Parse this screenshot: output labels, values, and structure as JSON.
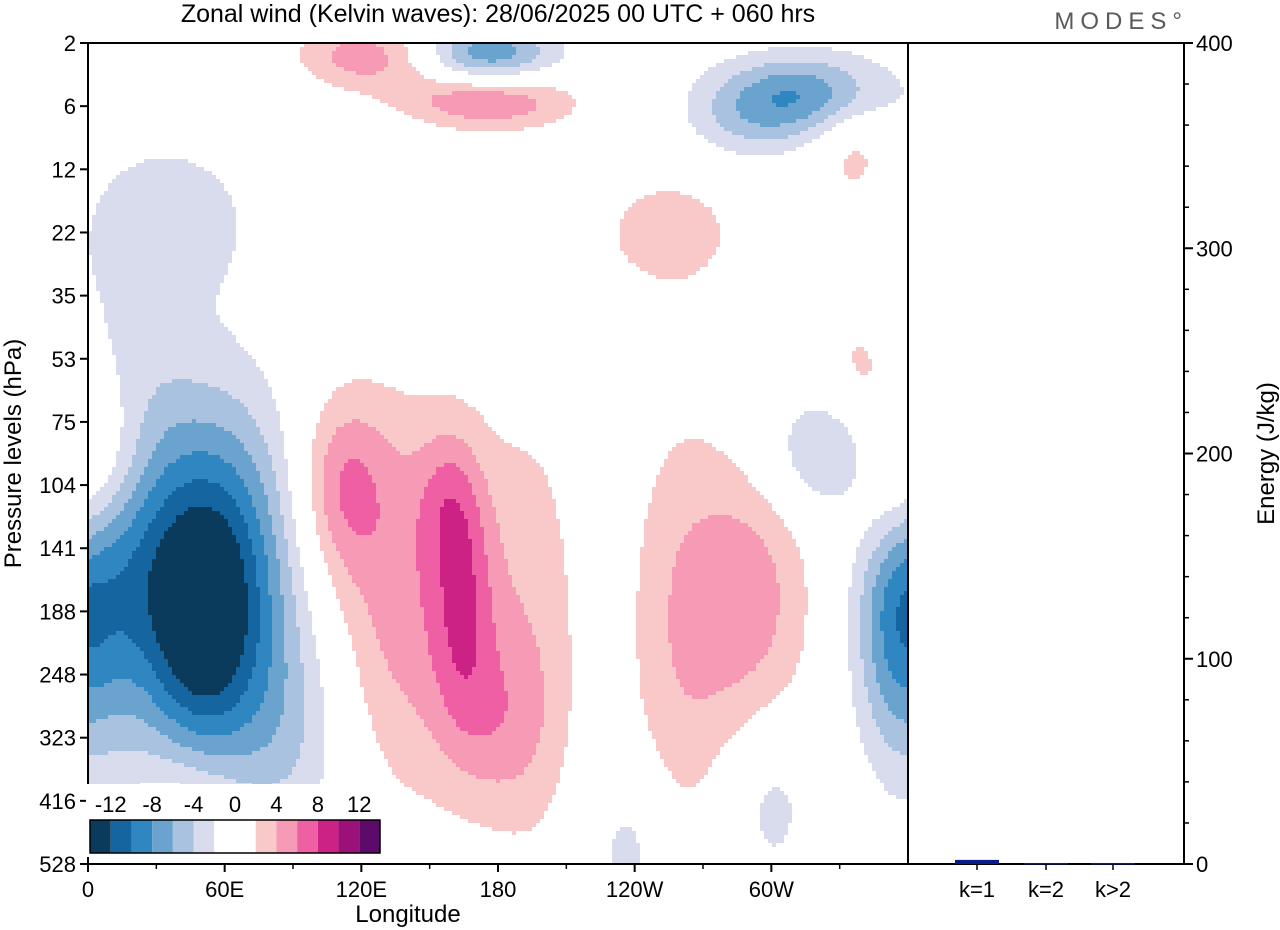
{
  "header": {
    "title": "Zonal wind (Kelvin waves):  28/06/2025  00 UTC  + 060 hrs",
    "brand": "MODES°"
  },
  "chart_data": [
    {
      "type": "heatmap",
      "title": "Zonal wind (Kelvin waves):  28/06/2025  00 UTC  + 060 hrs",
      "xlabel": "Longitude",
      "ylabel": "Pressure levels (hPa)",
      "x_ticks": [
        "0",
        "60E",
        "120E",
        "180",
        "120W",
        "60W"
      ],
      "y_ticks": [
        "2",
        "6",
        "12",
        "22",
        "35",
        "53",
        "75",
        "104",
        "141",
        "188",
        "248",
        "323",
        "416",
        "528"
      ],
      "colorbar": {
        "tick_labels": [
          "-12",
          "-8",
          "-4",
          "0",
          "4",
          "8",
          "12"
        ],
        "levels": [
          -14,
          -12,
          -10,
          -8,
          -6,
          -4,
          -2,
          0,
          2,
          4,
          6,
          8,
          10,
          12,
          14
        ],
        "colors": [
          "#0b3b5c",
          "#1565a0",
          "#2f86c0",
          "#6aa3cd",
          "#a9c2df",
          "#d8dcec",
          "#ffffff",
          "#ffffff",
          "#f9c8c8",
          "#f79ab5",
          "#ee5fa3",
          "#cc2185",
          "#9a1279",
          "#5c0b6b"
        ]
      },
      "features": [
        {
          "lon": 15,
          "lev": 8.0,
          "sx": 22,
          "sy": 2.2,
          "v": -9
        },
        {
          "lon": 5,
          "lev": 6.6,
          "sx": 16,
          "sy": 1.0,
          "v": 7
        },
        {
          "lon": 60,
          "lev": 8.6,
          "sx": 22,
          "sy": 2.0,
          "v": -11
        },
        {
          "lon": 48,
          "lev": 9.3,
          "sx": 14,
          "sy": 1.3,
          "v": -5
        },
        {
          "lon": 112,
          "lev": 7.0,
          "sx": 14,
          "sy": 1.0,
          "v": 5
        },
        {
          "lon": 140,
          "lev": 8.8,
          "sx": 24,
          "sy": 2.2,
          "v": 5
        },
        {
          "lon": 165,
          "lev": 8.9,
          "sx": 10,
          "sy": 1.4,
          "v": 5
        },
        {
          "lon": 195,
          "lev": 9.2,
          "sx": 16,
          "sy": 2.6,
          "v": 3
        },
        {
          "lon": 180,
          "lev": 10.8,
          "sx": 16,
          "sy": 1.0,
          "v": 3
        },
        {
          "lon": 290,
          "lev": 8.8,
          "sx": 20,
          "sy": 1.7,
          "v": 5
        },
        {
          "lon": 258,
          "lev": 9.4,
          "sx": 16,
          "sy": 2.6,
          "v": 3
        },
        {
          "lon": 328,
          "lev": 6.5,
          "sx": 22,
          "sy": 0.7,
          "v": -5
        },
        {
          "lon": 347,
          "lev": 7.0,
          "sx": 14,
          "sy": 0.8,
          "v": 3
        },
        {
          "lon": 354,
          "lev": 9.3,
          "sx": 12,
          "sy": 1.4,
          "v": -5
        },
        {
          "lon": 90,
          "lev": 11.0,
          "sx": 20,
          "sy": 1.3,
          "v": -3
        },
        {
          "lon": 45,
          "lev": 12.5,
          "sx": 18,
          "sy": 0.9,
          "v": 3
        },
        {
          "lon": 120,
          "lev": 0.2,
          "sx": 26,
          "sy": 0.45,
          "v": 7
        },
        {
          "lon": 175,
          "lev": 0.2,
          "sx": 20,
          "sy": 0.35,
          "v": -7
        },
        {
          "lon": 175,
          "lev": 0.9,
          "sx": 28,
          "sy": 0.35,
          "v": 7
        },
        {
          "lon": 312,
          "lev": 0.8,
          "sx": 26,
          "sy": 0.45,
          "v": -7
        },
        {
          "lon": 290,
          "lev": 1.3,
          "sx": 20,
          "sy": 0.45,
          "v": -3
        },
        {
          "lon": 337,
          "lev": 1.8,
          "sx": 12,
          "sy": 0.6,
          "v": 3
        },
        {
          "lon": 255,
          "lev": 3.0,
          "sx": 24,
          "sy": 0.7,
          "v": 3
        },
        {
          "lon": 35,
          "lev": 2.8,
          "sx": 30,
          "sy": 0.9,
          "v": -3
        },
        {
          "lon": 110,
          "lev": 0.3,
          "sx": 70,
          "sy": 0.8,
          "v": -2.2
        },
        {
          "lon": 340,
          "lev": 5.2,
          "sx": 12,
          "sy": 0.8,
          "v": 3
        },
        {
          "lon": 238,
          "lev": 12.8,
          "sx": 12,
          "sy": 0.9,
          "v": -3
        },
        {
          "lon": 300,
          "lev": 12.0,
          "sx": 14,
          "sy": 1.0,
          "v": -3
        },
        {
          "lon": 158,
          "lev": 7.2,
          "sx": 10,
          "sy": 0.8,
          "v": 3
        }
      ]
    },
    {
      "type": "bar",
      "categories": [
        "k=1",
        "k=2",
        "k>2"
      ],
      "values": [
        2,
        0.5,
        0.5
      ],
      "ylabel": "Energy (J/kg)",
      "ylim": [
        0,
        400
      ],
      "y_ticks": [
        0,
        100,
        200,
        300,
        400
      ],
      "bar_color": "#0a1a8c"
    }
  ]
}
